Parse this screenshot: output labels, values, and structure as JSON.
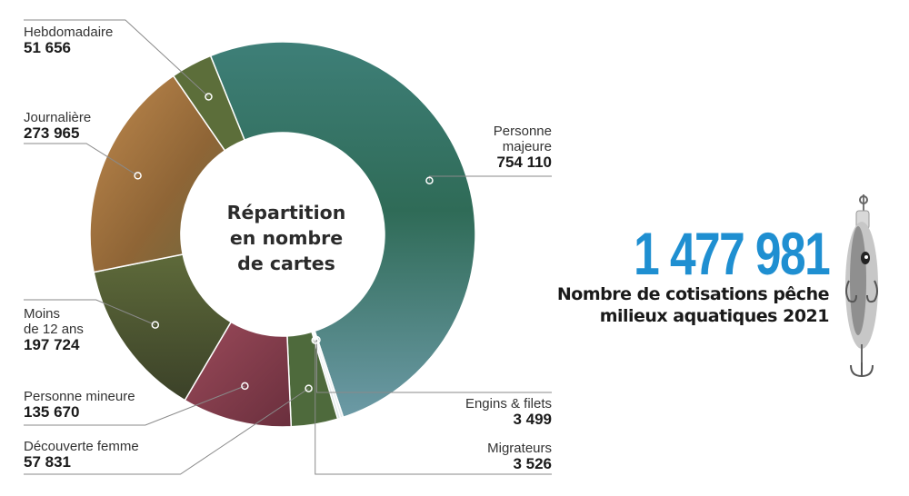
{
  "chart_data": {
    "type": "pie",
    "title": "Répartition en nombre de cartes",
    "title_lines": [
      "Répartition",
      "en nombre",
      "de cartes"
    ],
    "categories": [
      {
        "key": "personne_majeure",
        "name_lines": [
          "Personne",
          "majeure"
        ],
        "value_text": "754 110",
        "value": 754110,
        "color": "#4f8a86"
      },
      {
        "key": "engins_filets",
        "name_lines": [
          "Engins & filets"
        ],
        "value_text": "3 499",
        "value": 3499,
        "color": "#e9eef0"
      },
      {
        "key": "migrateurs",
        "name_lines": [
          "Migrateurs"
        ],
        "value_text": "3 526",
        "value": 3526,
        "color": "#dfe7ea"
      },
      {
        "key": "decouverte_femme",
        "name_lines": [
          "Découverte femme"
        ],
        "value_text": "57 831",
        "value": 57831,
        "color": "#4e6a3c"
      },
      {
        "key": "personne_mineure",
        "name_lines": [
          "Personne mineure"
        ],
        "value_text": "135 670",
        "value": 135670,
        "color": "#7d3a4a"
      },
      {
        "key": "moins_12",
        "name_lines": [
          "Moins",
          "de 12 ans"
        ],
        "value_text": "197 724",
        "value": 197724,
        "color": "#4d5a35"
      },
      {
        "key": "journaliere",
        "name_lines": [
          "Journalière"
        ],
        "value_text": "273 965",
        "value": 273965,
        "color": "#9a6a3a"
      },
      {
        "key": "hebdomadaire",
        "name_lines": [
          "Hebdomadaire"
        ],
        "value_text": "51 656",
        "value": 51656,
        "color": "#5c6e3a"
      }
    ]
  },
  "total": {
    "number": "1 477 981",
    "caption_lines": [
      "Nombre de cotisations pêche",
      "milieux aquatiques 2021"
    ],
    "color": "#1f8fd1"
  },
  "icons": {
    "lure": "fishing-lure-icon"
  }
}
